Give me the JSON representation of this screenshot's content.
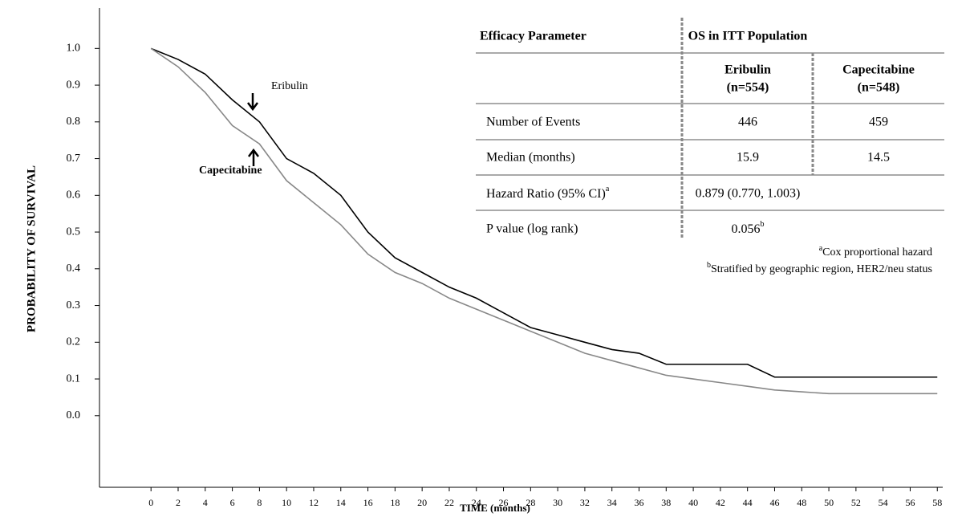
{
  "chart_data": {
    "type": "line",
    "x_label": "TIME (months)",
    "y_label": "PROBABILITY OF SURVIVAL",
    "x": [
      0,
      2,
      4,
      6,
      8,
      10,
      12,
      14,
      16,
      18,
      20,
      22,
      24,
      26,
      28,
      30,
      32,
      34,
      36,
      38,
      40,
      42,
      44,
      46,
      48,
      50,
      52,
      54,
      56,
      58
    ],
    "series": [
      {
        "name": "Eribulin",
        "color": "#000000",
        "values": [
          1.0,
          0.97,
          0.93,
          0.86,
          0.8,
          0.7,
          0.66,
          0.6,
          0.5,
          0.43,
          0.39,
          0.35,
          0.32,
          0.28,
          0.24,
          0.22,
          0.2,
          0.18,
          0.17,
          0.14,
          0.14,
          0.14,
          0.14,
          0.105,
          0.105,
          0.105,
          0.105,
          0.105,
          0.105,
          0.105
        ]
      },
      {
        "name": "Capecitabine",
        "color": "#888888",
        "values": [
          1.0,
          0.95,
          0.88,
          0.79,
          0.74,
          0.64,
          0.58,
          0.52,
          0.44,
          0.39,
          0.36,
          0.32,
          0.29,
          0.26,
          0.23,
          0.2,
          0.17,
          0.15,
          0.13,
          0.11,
          0.1,
          0.09,
          0.08,
          0.07,
          0.065,
          0.06,
          0.06,
          0.06,
          0.06,
          0.06
        ]
      }
    ],
    "xlim": [
      -3.8,
      58.4
    ],
    "ylim": [
      -0.195,
      1.11
    ],
    "xticks": [
      0,
      2,
      4,
      6,
      8,
      10,
      12,
      14,
      16,
      18,
      20,
      22,
      24,
      26,
      28,
      30,
      32,
      34,
      36,
      38,
      40,
      42,
      44,
      46,
      48,
      50,
      52,
      54,
      56,
      58
    ],
    "yticks": [
      {
        "value": 1,
        "label": "1.0"
      },
      0.9,
      0.8,
      0.7,
      0.6,
      0.5,
      0.4,
      0.3,
      0.2,
      0.1,
      {
        "value": 0,
        "label": "0.0"
      }
    ]
  },
  "table": {
    "header": [
      "Efficacy Parameter",
      "OS in ITT Population"
    ],
    "subheader": [
      [
        "Eribulin",
        "(n=554)"
      ],
      [
        "Capecitabine",
        "(n=548)"
      ]
    ],
    "rows": [
      {
        "label": "Number of Events",
        "cells": [
          "446",
          "459"
        ]
      },
      {
        "label": "Median (months)",
        "cells": [
          "15.9",
          "14.5"
        ]
      },
      {
        "label": "Hazard Ratio (95% CI)",
        "label_sup": "a",
        "value": "0.879 (0.770, 1.003)"
      },
      {
        "label": "P value (log rank)",
        "value": "0.056",
        "value_sup": "b"
      }
    ],
    "footnotes": [
      {
        "mark": "a",
        "text": "Cox proportional hazard"
      },
      {
        "mark": "b",
        "text": "Stratified by geographic region, HER2/neu status"
      }
    ]
  }
}
